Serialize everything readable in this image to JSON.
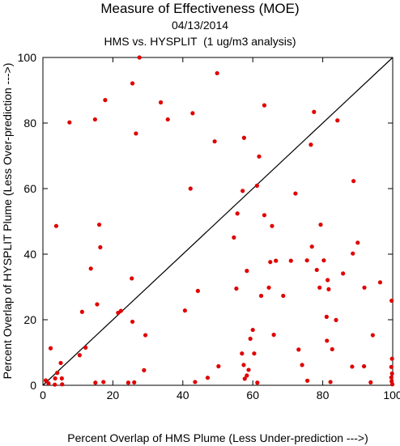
{
  "chart_data": {
    "type": "scatter",
    "title": "Measure of Effectiveness (MOE)",
    "subtitle": "04/13/2014",
    "subtitle2": "HMS vs. HYSPLIT  (1 ug/m3 analysis)",
    "xlabel": "Percent Overlap of HMS Plume (Less Under-prediction --->)",
    "ylabel": "Percent Overlap of HYSPLIT Plume (Less Over-prediction --->)",
    "xlim": [
      0,
      100
    ],
    "ylim": [
      0,
      100
    ],
    "x_ticks": [
      0,
      20,
      40,
      60,
      80,
      100
    ],
    "y_ticks": [
      0,
      20,
      40,
      60,
      80,
      100
    ],
    "grid": false,
    "diagonal": true,
    "marker_color": "#e00000",
    "series": [
      {
        "points": [
          [
            27.6,
            100
          ],
          [
            25.6,
            92.1
          ],
          [
            49.8,
            95.2
          ],
          [
            17.8,
            87
          ],
          [
            33.7,
            86.3
          ],
          [
            42.8,
            83
          ],
          [
            63.3,
            85.4
          ],
          [
            77.5,
            83.4
          ],
          [
            84.2,
            80.8
          ],
          [
            7.6,
            80.2
          ],
          [
            14.9,
            81.1
          ],
          [
            35.7,
            81.1
          ],
          [
            26.6,
            76.8
          ],
          [
            49.1,
            74.4
          ],
          [
            57.5,
            75.5
          ],
          [
            76.6,
            73.4
          ],
          [
            61.8,
            69.8
          ],
          [
            42.2,
            60
          ],
          [
            57.1,
            59.3
          ],
          [
            61.2,
            60.9
          ],
          [
            72.2,
            58.5
          ],
          [
            88.8,
            62.3
          ],
          [
            55.6,
            52.4
          ],
          [
            63.3,
            51.9
          ],
          [
            65.5,
            48.6
          ],
          [
            79.4,
            49
          ],
          [
            3.8,
            48.6
          ],
          [
            16.1,
            49
          ],
          [
            16.4,
            42.1
          ],
          [
            54.6,
            45.1
          ],
          [
            76.9,
            42.3
          ],
          [
            75.5,
            38.1
          ],
          [
            80.3,
            38.1
          ],
          [
            88.6,
            40.2
          ],
          [
            90,
            43.5
          ],
          [
            70.9,
            38
          ],
          [
            66.6,
            38
          ],
          [
            65,
            37.6
          ],
          [
            78.3,
            35.2
          ],
          [
            58.3,
            34.9
          ],
          [
            81.4,
            32.1
          ],
          [
            85.8,
            34.1
          ],
          [
            13.7,
            35.6
          ],
          [
            25.4,
            32.6
          ],
          [
            55.3,
            29.5
          ],
          [
            62.4,
            27.3
          ],
          [
            64.6,
            29.8
          ],
          [
            68.7,
            27.3
          ],
          [
            79.1,
            29.8
          ],
          [
            81.7,
            29.3
          ],
          [
            91.9,
            29.8
          ],
          [
            96.4,
            31.4
          ],
          [
            99.7,
            25.8
          ],
          [
            44.3,
            28.8
          ],
          [
            11.2,
            22.4
          ],
          [
            15.5,
            24.7
          ],
          [
            21.5,
            22.1
          ],
          [
            22.3,
            22.7
          ],
          [
            40.6,
            22.8
          ],
          [
            81.1,
            20.9
          ],
          [
            83.8,
            19.9
          ],
          [
            25.6,
            19.4
          ],
          [
            29.3,
            15.3
          ],
          [
            60,
            16.9
          ],
          [
            59.3,
            14.2
          ],
          [
            66,
            15.4
          ],
          [
            81.2,
            13.6
          ],
          [
            94.3,
            15.3
          ],
          [
            2.2,
            11.3
          ],
          [
            10.5,
            9.2
          ],
          [
            12.2,
            11.5
          ],
          [
            56.9,
            9.7
          ],
          [
            60.4,
            9.7
          ],
          [
            73.1,
            10.9
          ],
          [
            82.7,
            11
          ],
          [
            57.4,
            6.2
          ],
          [
            58.3,
            3
          ],
          [
            58.8,
            4.7
          ],
          [
            74.1,
            6.2
          ],
          [
            88.4,
            5.7
          ],
          [
            91.8,
            5.8
          ],
          [
            99.8,
            8.1
          ],
          [
            99.6,
            5.6
          ],
          [
            99.8,
            3.6
          ],
          [
            99.6,
            2.4
          ],
          [
            99.7,
            1.2
          ],
          [
            99.9,
            0.3
          ],
          [
            5.1,
            6.8
          ],
          [
            28.9,
            4.6
          ],
          [
            50.2,
            5.8
          ],
          [
            0.8,
            1.5
          ],
          [
            1.6,
            0.6
          ],
          [
            3.5,
            2.1
          ],
          [
            4.1,
            3.8
          ],
          [
            5.4,
            2.1
          ],
          [
            5.5,
            0.3
          ],
          [
            3.4,
            0.2
          ],
          [
            15,
            0.8
          ],
          [
            17.3,
            1
          ],
          [
            24.4,
            0.8
          ],
          [
            26.1,
            0.9
          ],
          [
            43.5,
            1
          ],
          [
            47.1,
            2.3
          ],
          [
            57.7,
            2
          ],
          [
            61.3,
            0.8
          ],
          [
            75.6,
            1.4
          ],
          [
            82.2,
            1
          ],
          [
            93.7,
            0.9
          ]
        ]
      }
    ]
  }
}
